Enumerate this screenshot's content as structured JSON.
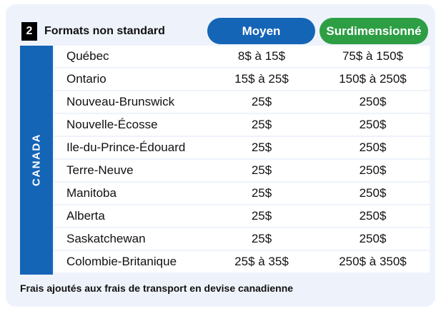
{
  "header": {
    "number": "2",
    "title": "Formats non standard",
    "col_moyen": "Moyen",
    "col_surdimensionne": "Surdimensionné"
  },
  "region_label": "CANADA",
  "rows": [
    {
      "province": "Québec",
      "moyen": "8$ à 15$",
      "surdimensionne": "75$ à 150$"
    },
    {
      "province": "Ontario",
      "moyen": "15$ à 25$",
      "surdimensionne": "150$ à 250$"
    },
    {
      "province": "Nouveau-Brunswick",
      "moyen": "25$",
      "surdimensionne": "250$"
    },
    {
      "province": "Nouvelle-Écosse",
      "moyen": "25$",
      "surdimensionne": "250$"
    },
    {
      "province": "Ile-du-Prince-Édouard",
      "moyen": "25$",
      "surdimensionne": "250$"
    },
    {
      "province": "Terre-Neuve",
      "moyen": "25$",
      "surdimensionne": "250$"
    },
    {
      "province": "Manitoba",
      "moyen": "25$",
      "surdimensionne": "250$"
    },
    {
      "province": "Alberta",
      "moyen": "25$",
      "surdimensionne": "250$"
    },
    {
      "province": "Saskatchewan",
      "moyen": "25$",
      "surdimensionne": "250$"
    },
    {
      "province": "Colombie-Britanique",
      "moyen": "25$ à 35$",
      "surdimensionne": "250$ à 350$"
    }
  ],
  "footnote": "Frais ajoutés aux frais de transport en devise canadienne",
  "colors": {
    "moyen": "#1565b7",
    "surdimensionne": "#2e9e45",
    "background": "#eef3fb"
  }
}
